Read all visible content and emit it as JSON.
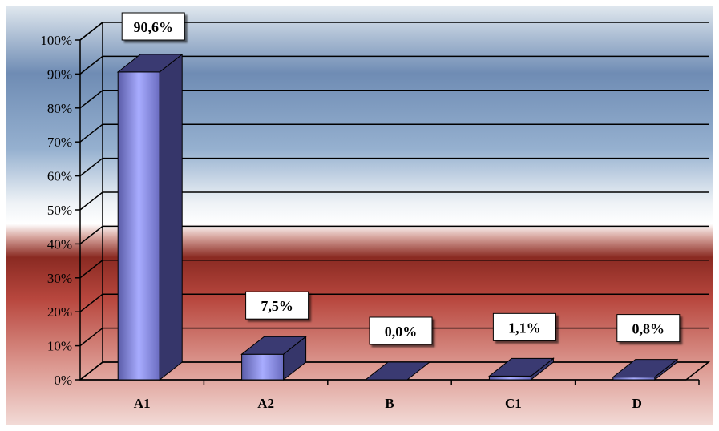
{
  "chart_data": {
    "type": "bar",
    "categories": [
      "A1",
      "A2",
      "B",
      "C1",
      "D"
    ],
    "values": [
      90.6,
      7.5,
      0.0,
      1.1,
      0.8
    ],
    "data_labels": [
      "90,6%",
      "7,5%",
      "0,0%",
      "1,1%",
      "0,8%"
    ],
    "y_ticks": [
      "0%",
      "10%",
      "20%",
      "30%",
      "40%",
      "50%",
      "60%",
      "70%",
      "80%",
      "90%",
      "100%"
    ],
    "ylim": [
      0,
      100
    ],
    "title": "",
    "xlabel": "",
    "ylabel": "",
    "grid": true,
    "legend": "none",
    "colors": {
      "bar_front": "#9a9ef2",
      "bar_side": "#36366a",
      "bar_top": "#3a3a72",
      "grid_line": "#000000",
      "label_box": "#ffffff"
    }
  }
}
